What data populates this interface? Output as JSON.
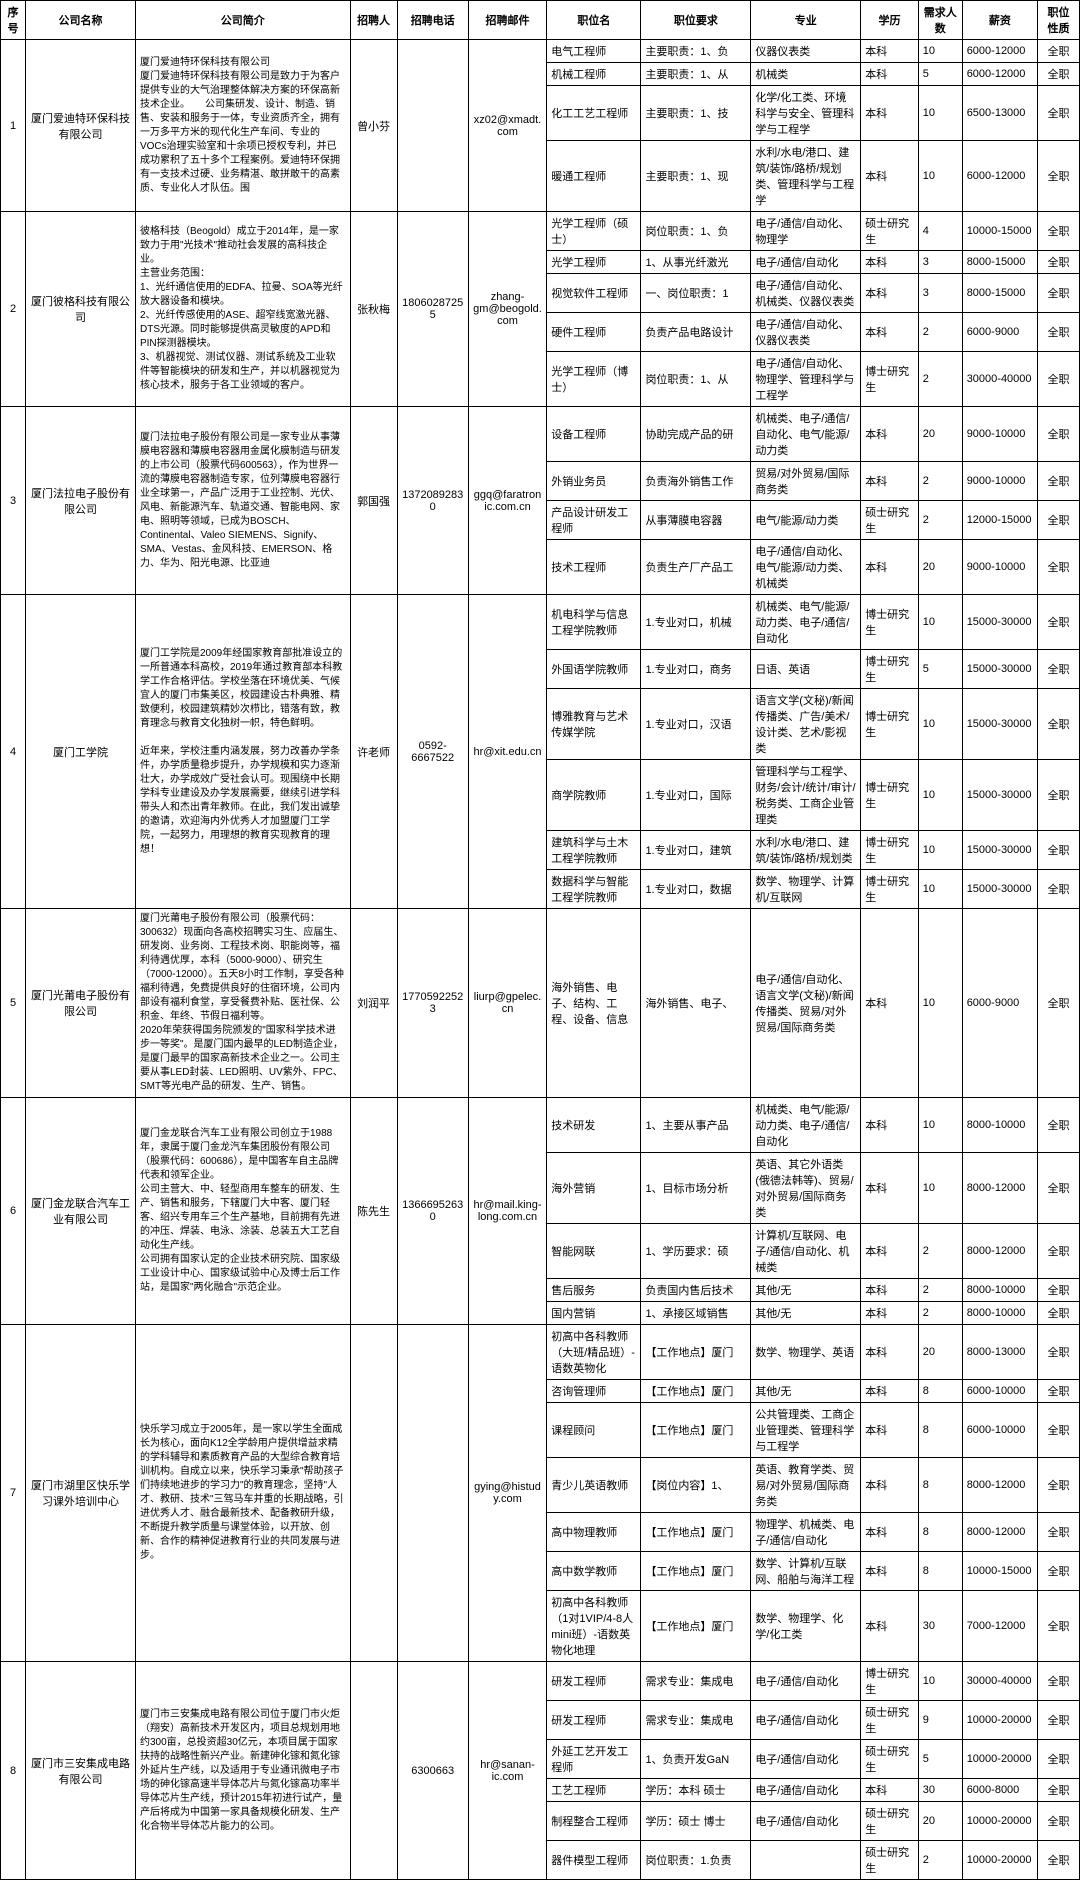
{
  "headers": [
    "序号",
    "公司名称",
    "公司简介",
    "招聘人",
    "招聘电话",
    "招聘邮件",
    "职位名",
    "职位要求",
    "专业",
    "学历",
    "需求人数",
    "薪资",
    "职位性质"
  ],
  "companies": [
    {
      "seq": "1",
      "name": "厦门爱迪特环保科技有限公司",
      "desc": "厦门爱迪特环保科技有限公司\n厦门爱迪特环保科技有限公司是致力于为客户提供专业的大气治理整体解决方案的环保高新技术企业。　　公司集研发、设计、制造、销售、安装和服务于一体，专业资质齐全，拥有一万多平方米的现代化生产车间、专业的VOCs治理实验室和十余项已授权专利，并已成功累积了五十多个工程案例。爱迪特环保拥有一支技术过硬、业务精湛、敢拼敢干的高素质、专业化人才队伍。围",
      "recruiter": "曾小芬",
      "tel": "",
      "mail": "xz02@xmadt.com",
      "jobs": [
        {
          "pos": "电气工程师",
          "req": "主要职责：1、负",
          "maj": "仪器仪表类",
          "edu": "本科",
          "num": "10",
          "sal": "6000-12000",
          "typ": "全职"
        },
        {
          "pos": "机械工程师",
          "req": "主要职责：1、从",
          "maj": "机械类",
          "edu": "本科",
          "num": "5",
          "sal": "6000-12000",
          "typ": "全职"
        },
        {
          "pos": "化工工艺工程师",
          "req": "主要职责：1、技",
          "maj": "化学/化工类、环境科学与安全、管理科学与工程学",
          "edu": "本科",
          "num": "10",
          "sal": "6500-13000",
          "typ": "全职"
        },
        {
          "pos": "暖通工程师",
          "req": "主要职责：1、现",
          "maj": "水利/水电/港口、建筑/装饰/路桥/规划类、管理科学与工程学",
          "edu": "本科",
          "num": "10",
          "sal": "6000-12000",
          "typ": "全职"
        }
      ]
    },
    {
      "seq": "2",
      "name": "厦门彼格科技有限公司",
      "desc": "彼格科技（Beogold）成立于2014年，是一家致力于用\"光技术\"推动社会发展的高科技企业。\n主营业务范围：\n1、光纤通信使用的EDFA、拉曼、SOA等光纤放大器设备和模块。\n2、光纤传感使用的ASE、超窄线宽激光器、DTS光源。同时能够提供高灵敏度的APD和PIN探测器模块。\n3、机器视觉、测试仪器、测试系统及工业软件等智能模块的研发和生产，并以机器视觉为核心技术，服务于各工业领域的客户。",
      "recruiter": "张秋梅",
      "tel": "18060287255",
      "mail": "zhang-gm@beogold.com",
      "jobs": [
        {
          "pos": "光学工程师（硕士）",
          "req": "岗位职责：1、负",
          "maj": "电子/通信/自动化、物理学",
          "edu": "硕士研究生",
          "num": "4",
          "sal": "10000-15000",
          "typ": "全职"
        },
        {
          "pos": "光学工程师",
          "req": "1、从事光纤激光",
          "maj": "电子/通信/自动化",
          "edu": "本科",
          "num": "3",
          "sal": "8000-15000",
          "typ": "全职"
        },
        {
          "pos": "视觉软件工程师",
          "req": "一、岗位职责：1",
          "maj": "电子/通信/自动化、机械类、仪器仪表类",
          "edu": "本科",
          "num": "3",
          "sal": "8000-15000",
          "typ": "全职"
        },
        {
          "pos": "硬件工程师",
          "req": "负责产品电路设计",
          "maj": "电子/通信/自动化、仪器仪表类",
          "edu": "本科",
          "num": "2",
          "sal": "6000-9000",
          "typ": "全职"
        },
        {
          "pos": "光学工程师（博士）",
          "req": "岗位职责：1、从",
          "maj": "电子/通信/自动化、物理学、管理科学与工程学",
          "edu": "博士研究生",
          "num": "2",
          "sal": "30000-40000",
          "typ": "全职"
        }
      ]
    },
    {
      "seq": "3",
      "name": "厦门法拉电子股份有限公司",
      "desc": "厦门法拉电子股份有限公司是一家专业从事薄膜电容器和薄膜电容器用金属化膜制造与研发的上市公司（股票代码600563），作为世界一流的薄膜电容器制造专家，位列薄膜电容器行业全球第一，产品广泛用于工业控制、光伏、风电、新能源汽车、轨道交通、智能电网、家电、照明等领域，已成为BOSCH、Continental、Valeo SIEMENS、Signify、SMA、Vestas、金风科技、EMERSON、格力、华为、阳光电源、比亚迪",
      "recruiter": "郭国强",
      "tel": "13720892830",
      "mail": "ggq@faratronic.com.cn",
      "jobs": [
        {
          "pos": "设备工程师",
          "req": "协助完成产品的研",
          "maj": "机械类、电子/通信/自动化、电气/能源/动力类",
          "edu": "本科",
          "num": "20",
          "sal": "9000-10000",
          "typ": "全职"
        },
        {
          "pos": "外销业务员",
          "req": "负责海外销售工作",
          "maj": "贸易/对外贸易/国际商务类",
          "edu": "本科",
          "num": "2",
          "sal": "9000-10000",
          "typ": "全职"
        },
        {
          "pos": "产品设计研发工程师",
          "req": "从事薄膜电容器",
          "maj": "电气/能源/动力类",
          "edu": "硕士研究生",
          "num": "2",
          "sal": "12000-15000",
          "typ": "全职"
        },
        {
          "pos": "技术工程师",
          "req": "负责生产厂产品工",
          "maj": "电子/通信/自动化、电气/能源/动力类、机械类",
          "edu": "本科",
          "num": "20",
          "sal": "9000-10000",
          "typ": "全职"
        }
      ]
    },
    {
      "seq": "4",
      "name": "厦门工学院",
      "desc": "厦门工学院是2009年经国家教育部批准设立的一所普通本科高校，2019年通过教育部本科教学工作合格评估。学校坐落在环境优美、气候宜人的厦门市集美区，校园建设古朴典雅、精致便利，校园建筑精妙次栉比，错落有致，教育理念与教育文化独树一帜，特色鲜明。\n\n近年来，学校注重内涵发展，努力改善办学条件，办学质量稳步提升，办学规模和实力逐渐壮大，办学成效广受社会认可。现围绕中长期学科专业建设及办学发展需要，继续引进学科带头人和杰出青年教师。在此，我们发出诚挚的邀请，欢迎海内外优秀人才加盟厦门工学院，一起努力，用理想的教育实现教育的理想！",
      "recruiter": "许老师",
      "tel": "0592-6667522",
      "mail": "hr@xit.edu.cn",
      "jobs": [
        {
          "pos": "机电科学与信息工程学院教师",
          "req": "1.专业对口，机械",
          "maj": "机械类、电气/能源/动力类、电子/通信/自动化",
          "edu": "博士研究生",
          "num": "10",
          "sal": "15000-30000",
          "typ": "全职"
        },
        {
          "pos": "外国语学院教师",
          "req": "1.专业对口，商务",
          "maj": "日语、英语",
          "edu": "博士研究生",
          "num": "5",
          "sal": "15000-30000",
          "typ": "全职"
        },
        {
          "pos": "博雅教育与艺术传媒学院",
          "req": "1.专业对口，汉语",
          "maj": "语言文学(文秘)/新闻传播类、广告/美术/设计类、艺术/影视类",
          "edu": "博士研究生",
          "num": "10",
          "sal": "15000-30000",
          "typ": "全职"
        },
        {
          "pos": "商学院教师",
          "req": "1.专业对口，国际",
          "maj": "管理科学与工程学、财务/会计/统计/审计/税务类、工商企业管理类",
          "edu": "博士研究生",
          "num": "10",
          "sal": "15000-30000",
          "typ": "全职"
        },
        {
          "pos": "建筑科学与土木工程学院教师",
          "req": "1.专业对口，建筑",
          "maj": "水利/水电/港口、建筑/装饰/路桥/规划类",
          "edu": "博士研究生",
          "num": "10",
          "sal": "15000-30000",
          "typ": "全职"
        },
        {
          "pos": "数据科学与智能工程学院教师",
          "req": "1.专业对口，数据",
          "maj": "数学、物理学、计算机/互联网",
          "edu": "博士研究生",
          "num": "10",
          "sal": "15000-30000",
          "typ": "全职"
        }
      ]
    },
    {
      "seq": "5",
      "name": "厦门光莆电子股份有限公司",
      "desc": "厦门光莆电子股份有限公司（股票代码：300632）现面向各高校招聘实习生、应届生、研发岗、业务岗、工程技术岗、职能岗等，福利待遇优厚，本科（5000-9000）、研究生（7000-12000）。五天8小时工作制，享受各种福利待遇，免费提供良好的住宿环境，公司内部设有福利食堂，享受餐费补贴、医社保、公积金、年终、节假日福利等。\n2020年荣获得国务院颁发的\"国家科学技术进步一等奖\"。是厦门国内最早的LED制造企业，是厦门最早的国家高新技术企业之一。公司主要从事LED封装、LED照明、UV紫外、FPC、SMT等光电产品的研发、生产、销售。",
      "recruiter": "刘润平",
      "tel": "17705922523",
      "mail": "liurp@gpelec.cn",
      "jobs": [
        {
          "pos": "海外销售、电子、结构、工程、设备、信息",
          "req": "海外销售、电子、",
          "maj": "电子/通信/自动化、语言文学(文秘)/新闻传播类、贸易/对外贸易/国际商务类",
          "edu": "本科",
          "num": "10",
          "sal": "6000-9000",
          "typ": "全职"
        }
      ]
    },
    {
      "seq": "6",
      "name": "厦门金龙联合汽车工业有限公司",
      "desc": "厦门金龙联合汽车工业有限公司创立于1988年，隶属于厦门金龙汽车集团股份有限公司（股票代码：600686），是中国客车自主品牌代表和领军企业。\n公司主营大、中、轻型商用车整车的研发、生产、销售和服务，下辖厦门大中客、厦门轻客、绍兴专用车三个生产基地，目前拥有先进的冲压、焊装、电泳、涂装、总装五大工艺自动化生产线。\n公司拥有国家认定的企业技术研究院、国家级工业设计中心、国家级试验中心及博士后工作站，是国家\"两化融合\"示范企业。",
      "recruiter": "陈先生",
      "tel": "13666952630",
      "mail": "hr@mail.king-long.com.cn",
      "jobs": [
        {
          "pos": "技术研发",
          "req": "1、主要从事产品",
          "maj": "机械类、电气/能源/动力类、电子/通信/自动化",
          "edu": "本科",
          "num": "10",
          "sal": "8000-10000",
          "typ": "全职"
        },
        {
          "pos": "海外营销",
          "req": "1、目标市场分析",
          "maj": "英语、其它外语类(俄德法韩等)、贸易/对外贸易/国际商务类",
          "edu": "本科",
          "num": "10",
          "sal": "8000-12000",
          "typ": "全职"
        },
        {
          "pos": "智能网联",
          "req": "1、学历要求：硕",
          "maj": "计算机/互联网、电子/通信/自动化、机械类",
          "edu": "本科",
          "num": "2",
          "sal": "8000-12000",
          "typ": "全职"
        },
        {
          "pos": "售后服务",
          "req": "负责国内售后技术",
          "maj": "其他/无",
          "edu": "本科",
          "num": "2",
          "sal": "8000-10000",
          "typ": "全职"
        },
        {
          "pos": "国内营销",
          "req": "1、承接区域销售",
          "maj": "其他/无",
          "edu": "本科",
          "num": "2",
          "sal": "8000-10000",
          "typ": "全职"
        }
      ]
    },
    {
      "seq": "7",
      "name": "厦门市湖里区快乐学习课外培训中心",
      "desc": "快乐学习成立于2005年，是一家以学生全面成长为核心，面向K12全学龄用户提供增益求精的学科辅导和素质教育产品的大型综合教育培训机构。自成立以来，快乐学习秉承\"帮助孩子们持续地进步的学习力\"的教育理念，坚持\"人才、教研、技术\"三驾马车并重的长期战略，引进优秀人才、融合最新技术、配备教研升级，不断提升教学质量与课堂体验，以开放、创新、合作的精神促进教育行业的共同发展与进步。",
      "recruiter": "",
      "tel": "",
      "mail": "gying@histudy.com",
      "jobs": [
        {
          "pos": "初高中各科教师（大班/精品班）-语数英物化",
          "req": "【工作地点】厦门",
          "maj": "数学、物理学、英语",
          "edu": "本科",
          "num": "20",
          "sal": "8000-13000",
          "typ": "全职"
        },
        {
          "pos": "咨询管理师",
          "req": "【工作地点】厦门",
          "maj": "其他/无",
          "edu": "本科",
          "num": "8",
          "sal": "6000-10000",
          "typ": "全职"
        },
        {
          "pos": "课程顾问",
          "req": "【工作地点】厦门",
          "maj": "公共管理类、工商企业管理类、管理科学与工程学",
          "edu": "本科",
          "num": "8",
          "sal": "6000-10000",
          "typ": "全职"
        },
        {
          "pos": "青少儿英语教师",
          "req": "【岗位内容】1、",
          "maj": "英语、教育学类、贸易/对外贸易/国际商务类",
          "edu": "本科",
          "num": "8",
          "sal": "8000-12000",
          "typ": "全职"
        },
        {
          "pos": "高中物理教师",
          "req": "【工作地点】厦门",
          "maj": "物理学、机械类、电子/通信/自动化",
          "edu": "本科",
          "num": "8",
          "sal": "8000-12000",
          "typ": "全职"
        },
        {
          "pos": "高中数学教师",
          "req": "【工作地点】厦门",
          "maj": "数学、计算机/互联网、船舶与海洋工程",
          "edu": "本科",
          "num": "8",
          "sal": "10000-15000",
          "typ": "全职"
        },
        {
          "pos": "初高中各科教师（1对1VIP/4-8人mini班）-语数英物化地理",
          "req": "【工作地点】厦门",
          "maj": "数学、物理学、化学/化工类",
          "edu": "本科",
          "num": "30",
          "sal": "7000-12000",
          "typ": "全职"
        }
      ]
    },
    {
      "seq": "8",
      "name": "厦门市三安集成电路有限公司",
      "desc": "厦门市三安集成电路有限公司位于厦门市火炬（翔安）高新技术开发区内，项目总规划用地约300亩，总投资超30亿元，本项目属于国家扶持的战略性新兴产业。新建砷化镓和氮化镓外延片生产线，以及适用于专业通讯微电子市场的砷化镓高速半导体芯片与氮化镓高功率半导体芯片生产线，预计2015年初进行试产，量产后将成为中国第一家具备规模化研发、生产化合物半导体芯片能力的公司。",
      "recruiter": "",
      "tel": "6300663",
      "mail": "hr@sanan-ic.com",
      "jobs": [
        {
          "pos": "研发工程师",
          "req": "需求专业：集成电",
          "maj": "电子/通信/自动化",
          "edu": "博士研究生",
          "num": "10",
          "sal": "30000-40000",
          "typ": "全职"
        },
        {
          "pos": "研发工程师",
          "req": "需求专业：集成电",
          "maj": "电子/通信/自动化",
          "edu": "硕士研究生",
          "num": "9",
          "sal": "10000-20000",
          "typ": "全职"
        },
        {
          "pos": "外延工艺开发工程师",
          "req": "1、负责开发GaN",
          "maj": "电子/通信/自动化",
          "edu": "硕士研究生",
          "num": "5",
          "sal": "10000-20000",
          "typ": "全职"
        },
        {
          "pos": "工艺工程师",
          "req": "学历：本科 硕士",
          "maj": "电子/通信/自动化",
          "edu": "本科",
          "num": "30",
          "sal": "6000-8000",
          "typ": "全职"
        },
        {
          "pos": "制程整合工程师",
          "req": "学历：硕士 博士",
          "maj": "电子/通信/自动化",
          "edu": "硕士研究生",
          "num": "20",
          "sal": "10000-20000",
          "typ": "全职"
        },
        {
          "pos": "器件模型工程师",
          "req": "岗位职责：1.负责",
          "maj": "",
          "edu": "硕士研究生",
          "num": "2",
          "sal": "10000-20000",
          "typ": "全职"
        }
      ]
    }
  ]
}
